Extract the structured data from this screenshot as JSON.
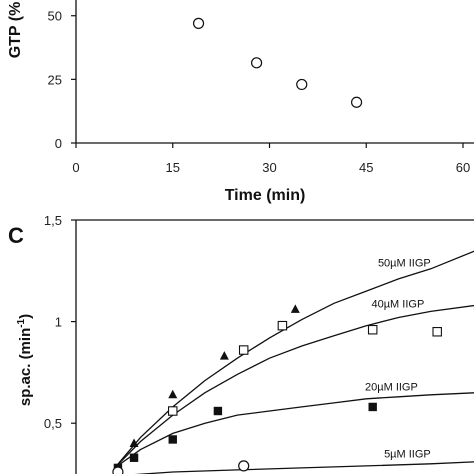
{
  "chart_data": [
    {
      "type": "scatter",
      "xlabel": "Time (min)",
      "ylabel": "GTP (%)",
      "ylabel_visible": "GTP (%",
      "xlim": [
        0,
        60
      ],
      "ylim": [
        0,
        55
      ],
      "x_ticks": [
        "0",
        "15",
        "30",
        "45",
        "60"
      ],
      "y_ticks": [
        "0",
        "25",
        "50"
      ],
      "series": [
        {
          "marker": "open-circle",
          "x": [
            19,
            28,
            35,
            43.5
          ],
          "y": [
            47,
            31.5,
            23,
            16
          ]
        }
      ]
    },
    {
      "type": "scatter",
      "panel_label": "C",
      "xlabel": "",
      "ylabel": "sp.ac. (min",
      "ylabel_sup": "-1",
      "ylabel_close": ")",
      "xlim": [
        0,
        60
      ],
      "ylim": [
        0.25,
        1.5
      ],
      "y_ticks": [
        "0,5",
        "1",
        "1,5"
      ],
      "series": [
        {
          "name": "50µM IIGP",
          "marker": "filled-triangle",
          "x": [
            9,
            15,
            23,
            34
          ],
          "y": [
            0.4,
            0.64,
            0.83,
            1.06
          ],
          "fit": [
            [
              6,
              0.28
            ],
            [
              10,
              0.43
            ],
            [
              15,
              0.58
            ],
            [
              20,
              0.71
            ],
            [
              25,
              0.82
            ],
            [
              30,
              0.92
            ],
            [
              35,
              1.01
            ],
            [
              40,
              1.09
            ],
            [
              45,
              1.15
            ],
            [
              50,
              1.21
            ],
            [
              55,
              1.26
            ],
            [
              62,
              1.35
            ]
          ],
          "label_at": [
            55,
            1.27
          ]
        },
        {
          "name": "40µM IIGP",
          "marker": "open-square",
          "x": [
            15,
            26,
            32,
            46,
            56
          ],
          "y": [
            0.56,
            0.86,
            0.98,
            0.96,
            0.95
          ],
          "fit": [
            [
              6,
              0.28
            ],
            [
              10,
              0.41
            ],
            [
              15,
              0.54
            ],
            [
              20,
              0.65
            ],
            [
              25,
              0.74
            ],
            [
              30,
              0.82
            ],
            [
              35,
              0.88
            ],
            [
              40,
              0.93
            ],
            [
              45,
              0.98
            ],
            [
              50,
              1.02
            ],
            [
              55,
              1.05
            ],
            [
              62,
              1.08
            ]
          ],
          "label_at": [
            54,
            1.07
          ]
        },
        {
          "name": "20µM IIGP",
          "marker": "filled-square",
          "x": [
            6.5,
            9,
            15,
            22,
            46
          ],
          "y": [
            0.28,
            0.33,
            0.42,
            0.56,
            0.58
          ],
          "fit": [
            [
              6,
              0.28
            ],
            [
              10,
              0.37
            ],
            [
              15,
              0.45
            ],
            [
              20,
              0.5
            ],
            [
              25,
              0.54
            ],
            [
              30,
              0.56
            ],
            [
              35,
              0.58
            ],
            [
              40,
              0.6
            ],
            [
              45,
              0.62
            ],
            [
              50,
              0.63
            ],
            [
              55,
              0.64
            ],
            [
              62,
              0.65
            ]
          ],
          "label_at": [
            53,
            0.66
          ]
        },
        {
          "name": "5µM IIGP",
          "marker": "open-circle",
          "x": [
            6.5,
            26
          ],
          "y": [
            0.26,
            0.29
          ],
          "fit": [
            [
              6,
              0.24
            ],
            [
              15,
              0.26
            ],
            [
              25,
              0.27
            ],
            [
              35,
              0.28
            ],
            [
              45,
              0.29
            ],
            [
              55,
              0.3
            ],
            [
              62,
              0.31
            ]
          ],
          "label_at": [
            55,
            0.33
          ]
        }
      ]
    }
  ]
}
